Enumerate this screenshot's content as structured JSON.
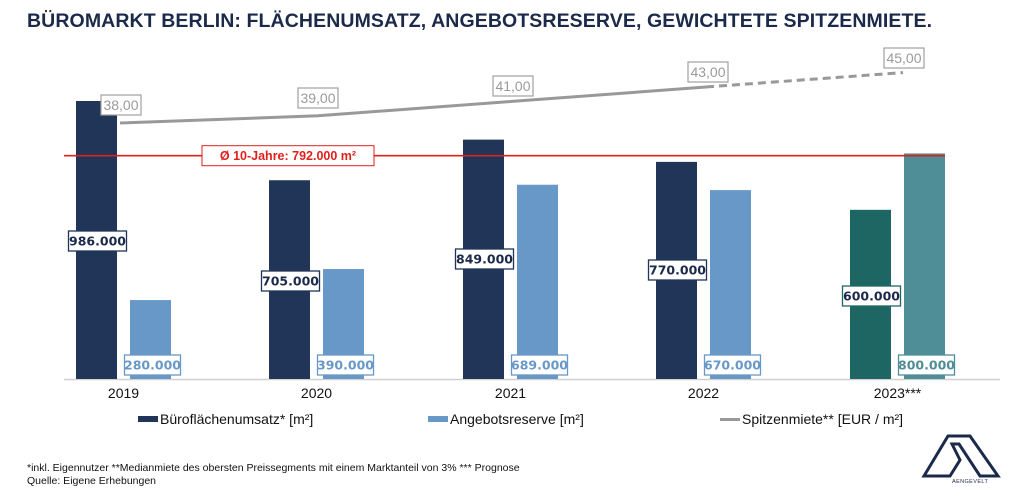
{
  "title": "BÜROMARKT BERLIN: FLÄCHENUMSATZ, ANGEBOTSRESERVE, GEWICHTETE SPITZENMIETE.",
  "chart_data": {
    "type": "bar",
    "title": "BÜROMARKT BERLIN: FLÄCHENUMSATZ, ANGEBOTSRESERVE, GEWICHTETE SPITZENMIETE.",
    "categories": [
      "2019",
      "2020",
      "2021",
      "2022",
      "2023***"
    ],
    "series": [
      {
        "name": "Büroflächenumsatz* [m²]",
        "type": "bar",
        "values": [
          986000,
          705000,
          849000,
          770000,
          600000
        ],
        "labels": [
          "986.000",
          "705.000",
          "849.000",
          "770.000",
          "600.000"
        ],
        "color": "#213559",
        "forecast_color": "#1e6664"
      },
      {
        "name": "Angebotsreserve [m²]",
        "type": "bar",
        "values": [
          280000,
          390000,
          689000,
          670000,
          800000
        ],
        "labels": [
          "280.000",
          "390.000",
          "689.000",
          "670.000",
          "800.000"
        ],
        "color": "#6898c8",
        "forecast_color": "#4f8e96"
      },
      {
        "name": "Spitzenmiete** [EUR / m²]",
        "type": "line",
        "values": [
          38.0,
          39.0,
          41.0,
          43.0,
          45.0
        ],
        "labels": [
          "38,00",
          "39,00",
          "41,00",
          "43,00",
          "45,00"
        ],
        "color": "#999999",
        "dashed_from_index": 3
      }
    ],
    "reference_line": {
      "label": "Ø 10-Jahre: 792.000 m²",
      "value": 792000,
      "color": "#e0201c"
    },
    "forecast_index": 4,
    "xlabel": "",
    "ylabel": "",
    "grid": false,
    "legend_position": "bottom"
  },
  "legend": [
    {
      "label": "Büroflächenumsatz* [m²]",
      "kind": "bar",
      "color": "#213559"
    },
    {
      "label": "Angebotsreserve [m²]",
      "kind": "bar",
      "color": "#6898c8"
    },
    {
      "label": "Spitzenmiete** [EUR / m²]",
      "kind": "line",
      "color": "#999999"
    }
  ],
  "footnote": {
    "line1": "*inkl. Eigennutzer **Medianmiete des obersten Preissegments mit einem Marktanteil von 3% *** Prognose",
    "line2": "Quelle: Eigene Erhebungen"
  },
  "logo": {
    "text": "AENGEVELT",
    "icon": "aengevelt-logo-icon"
  }
}
